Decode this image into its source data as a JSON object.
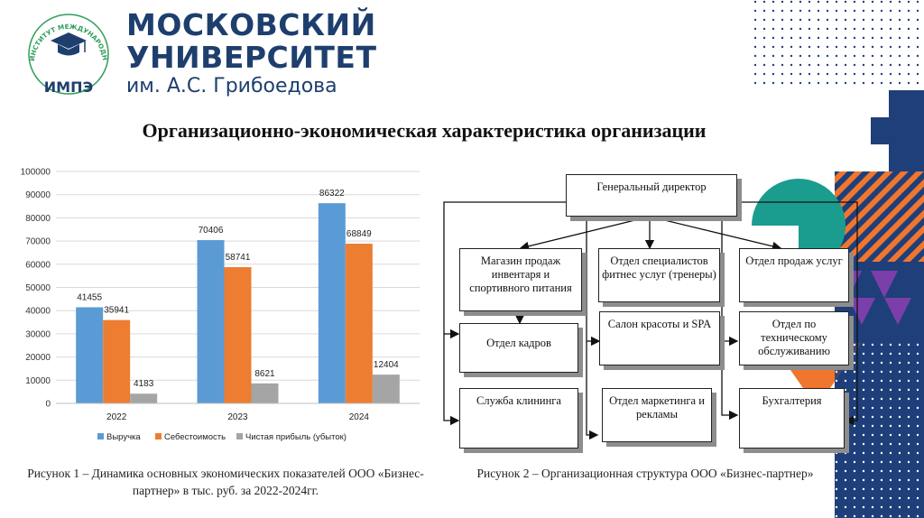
{
  "header": {
    "emblem_ring_text": "ИНСТИТУТ МЕЖДУНАРОДНОЙ ЭКОНОМИКИ ЛИДЕРСТВА И МЕНЕДЖМЕНТА",
    "emblem_abbr": "ИМПЭ",
    "university_line1": "МОСКОВСКИЙ",
    "university_line2": "УНИВЕРСИТЕТ",
    "university_line3": "им. А.С. Грибоедова"
  },
  "title": "Организационно-экономическая характеристика организации",
  "colors": {
    "brand_navy": "#1e3f6e",
    "brand_green": "#2f9e5a",
    "series_revenue": "#5b9bd5",
    "series_cost": "#ed7d31",
    "series_profit": "#a5a5a5",
    "deco_orange": "#f0762d",
    "deco_teal": "#1a9d8f",
    "deco_blue": "#2d4fbf"
  },
  "chart_data": {
    "type": "bar",
    "categories": [
      "2022",
      "2023",
      "2024"
    ],
    "series": [
      {
        "name": "Выручка",
        "values": [
          41455,
          70406,
          86322
        ]
      },
      {
        "name": "Себестоимость",
        "values": [
          35941,
          58741,
          68849
        ]
      },
      {
        "name": "Чистая прибыль (убыток)",
        "values": [
          4183,
          8621,
          12404
        ]
      }
    ],
    "ylim": [
      0,
      100000
    ],
    "yticks": [
      0,
      10000,
      20000,
      30000,
      40000,
      50000,
      60000,
      70000,
      80000,
      90000,
      100000
    ],
    "grid": true,
    "legend": "bottom",
    "xlabel": "",
    "ylabel": ""
  },
  "captions": {
    "figure1": "Рисунок 1 – Динамика основных экономических показателей ООО «Бизнес-партнер» в тыс. руб. за 2022-2024гг.",
    "figure2": "Рисунок 2 – Организационная структура ООО «Бизнес-партнер»"
  },
  "org": {
    "director": "Генеральный директор",
    "shop": "Магазин продаж инвентаря и спортивного питания",
    "fitness": "Отдел специалистов фитнес услуг (тренеры)",
    "sales": "Отдел продаж услуг",
    "hr": "Отдел кадров",
    "salon": "Салон красоты и SPA",
    "tech": "Отдел по техническому обслуживанию",
    "cleaning": "Служба клининга",
    "marketing": "Отдел маркетинга и рекламы",
    "accounting": "Бухгалтерия"
  }
}
